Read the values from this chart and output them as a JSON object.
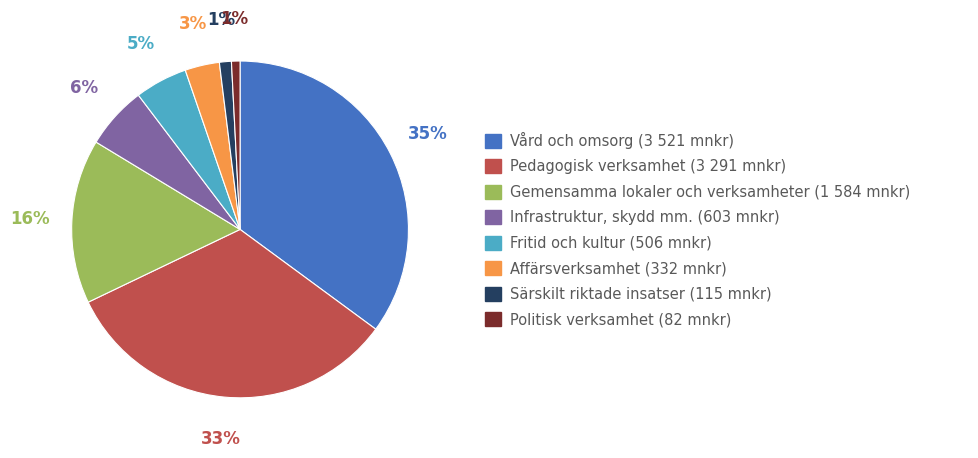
{
  "labels": [
    "Vård och omsorg (3 521 mnkr)",
    "Pedagogisk verksamhet (3 291 mnkr)",
    "Gemensamma lokaler och verksamheter (1 584 mnkr)",
    "Infrastruktur, skydd mm. (603 mnkr)",
    "Fritid och kultur (506 mnkr)",
    "Affärsverksamhet (332 mnkr)",
    "Särskilt riktade insatser (115 mnkr)",
    "Politisk verksamhet (82 mnkr)"
  ],
  "values": [
    3521,
    3291,
    1584,
    603,
    506,
    332,
    115,
    82
  ],
  "colors": [
    "#4472C4",
    "#C0504D",
    "#9BBB59",
    "#8064A2",
    "#4BACC6",
    "#F79646",
    "#243F60",
    "#7B2C2C"
  ],
  "pct_labels": [
    "35%",
    "33%",
    "16%",
    "6%",
    "5%",
    "3%",
    "1%",
    "1%"
  ],
  "pct_colors": [
    "#4472C4",
    "#C0504D",
    "#9BBB59",
    "#8064A2",
    "#4BACC6",
    "#F79646",
    "#243F60",
    "#7B2C2C"
  ],
  "background_color": "#FFFFFF",
  "legend_text_color": "#595959",
  "legend_fontsize": 10.5,
  "pct_fontsize": 12
}
